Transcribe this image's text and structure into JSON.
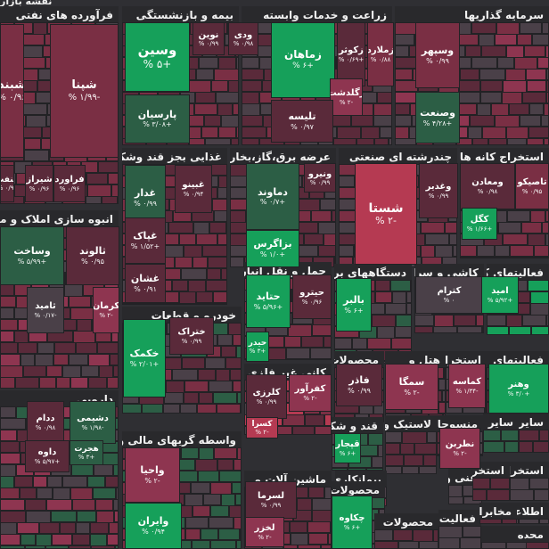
{
  "colors": {
    "red_dark": "#5a2a3a",
    "red": "#7a2f44",
    "red_mid": "#8e3550",
    "red_bright": "#b53a52",
    "grey": "#4a4048",
    "green_dark": "#2c5e45",
    "green": "#16a05a",
    "green_bright": "#19b866"
  },
  "top_clipped_label": "نقشه بازار",
  "sectors": [
    {
      "id": "s-refining",
      "title": "فرآورده های نفتی"
    },
    {
      "id": "s-insurance",
      "title": "بیمه و بازنشستگی"
    },
    {
      "id": "s-agri",
      "title": "زراعت و خدمات وابسته"
    },
    {
      "id": "s-investment",
      "title": "سرمایه گذاریها"
    },
    {
      "id": "s-food",
      "title": "غذایی بجز قند وشکر"
    },
    {
      "id": "s-wood",
      "title": "عرضه برق،گاز،بخار و آب"
    },
    {
      "id": "s-multi",
      "title": "چندرشته ای صنعتی"
    },
    {
      "id": "s-mining",
      "title": "استخراج کانه های"
    },
    {
      "id": "s-construction",
      "title": "انبوه سازی املاک و مستغ"
    },
    {
      "id": "s-transport",
      "title": "حمل و نقل انبارداری"
    },
    {
      "id": "s-elec",
      "title": "دستگاههای برقی"
    },
    {
      "id": "s-tiles",
      "title": "کاشی و سرامیک"
    },
    {
      "id": "s-auxfin",
      "title": "فعالیتهای کمکی"
    },
    {
      "id": "s-auto",
      "title": "خودرو و قطعات"
    },
    {
      "id": "s-metals",
      "title": "کانی غیر فلزی"
    },
    {
      "id": "s-products",
      "title": "محصولات"
    },
    {
      "id": "s-hotel",
      "title": "هتل و"
    },
    {
      "id": "s-extract",
      "title": "استخراج"
    },
    {
      "id": "s-act",
      "title": "فعالیتهای"
    },
    {
      "id": "s-pharma",
      "title": "دارویی"
    },
    {
      "id": "s-finance",
      "title": "واسطه گریهای مالی و پولی"
    },
    {
      "id": "s-sugar",
      "title": "قند و شکر"
    },
    {
      "id": "s-plastic",
      "title": "لاستیک و"
    },
    {
      "id": "s-textile",
      "title": "منسوجا"
    },
    {
      "id": "s-other",
      "title": "سایر"
    },
    {
      "id": "s-other2",
      "title": "سایر"
    },
    {
      "id": "s-machinery",
      "title": "ماشین آلات و"
    },
    {
      "id": "s-contract",
      "title": "پیمانکاری"
    },
    {
      "id": "s-tech",
      "title": "فنی و"
    },
    {
      "id": "s-products2",
      "title": "محصولات"
    },
    {
      "id": "s-products3",
      "title": "محصولات"
    },
    {
      "id": "s-act2",
      "title": "فعالیت"
    },
    {
      "id": "s-ext3",
      "title": "استخراج"
    },
    {
      "id": "s-ext4",
      "title": "استخراج"
    },
    {
      "id": "s-info",
      "title": "اطلاعات"
    },
    {
      "id": "s-comm",
      "title": "مخابرات"
    },
    {
      "id": "s-retail",
      "title": "خرده"
    },
    {
      "id": "s-retail2",
      "title": "محصو"
    }
  ],
  "tiles": [
    {
      "id": "t-shebandar",
      "name": "شبند",
      "pct": "۰/۹۶ %",
      "color": "red"
    },
    {
      "id": "t-shepna",
      "name": "شپنا",
      "pct": "-۱/۹۹ %",
      "color": "red"
    },
    {
      "id": "t-shiraz",
      "name": "شیراز",
      "pct": "۰/۹۶ %",
      "color": "red_dark"
    },
    {
      "id": "t-fanft",
      "name": "فنفت",
      "pct": "۰/۹۶ %",
      "color": "red_dark"
    },
    {
      "id": "t-fravard",
      "name": "فراورد",
      "pct": "۰/۹۶ %",
      "color": "red_dark"
    },
    {
      "id": "t-vasin",
      "name": "وسین",
      "pct": "+۵ %",
      "color": "green"
    },
    {
      "id": "t-novin",
      "name": "نوین",
      "pct": "۰/۹۹ %",
      "color": "red_dark"
    },
    {
      "id": "t-vadi",
      "name": "ودی",
      "pct": "۰/۹۸ %",
      "color": "red_dark"
    },
    {
      "id": "t-parsian",
      "name": "پارسیان",
      "pct": "+۳/۰۸ %",
      "color": "green_dark"
    },
    {
      "id": "t-zamahan",
      "name": "زماهان",
      "pct": "+۶ %",
      "color": "green"
    },
    {
      "id": "t-zkosar",
      "name": "زکوثر",
      "pct": "+۰/۶۹ %",
      "color": "red_dark"
    },
    {
      "id": "t-zmlard",
      "name": "زملارد",
      "pct": "۰/۸۸ %",
      "color": "red"
    },
    {
      "id": "t-zgldasht",
      "name": "زگلدشت",
      "pct": "-۲ %",
      "color": "red_mid"
    },
    {
      "id": "t-tlisa",
      "name": "تلیسه",
      "pct": "۰/۹۷ %",
      "color": "red_dark"
    },
    {
      "id": "t-vaspehr",
      "name": "وسپهر",
      "pct": "۰/۹۹ %",
      "color": "red"
    },
    {
      "id": "t-vasanat",
      "name": "وصنعت",
      "pct": "+۴/۲۸ %",
      "color": "green_dark"
    },
    {
      "id": "t-ghadar",
      "name": "غدار",
      "pct": "۰/۹۹ %",
      "color": "green_dark"
    },
    {
      "id": "t-ghinu",
      "name": "غبینو",
      "pct": "۰/۹۴ %",
      "color": "red_dark"
    },
    {
      "id": "t-ghyak",
      "name": "غپاک",
      "pct": "+۱/۵۲ %",
      "color": "red_dark"
    },
    {
      "id": "t-ghshan",
      "name": "غشان",
      "pct": "۰/۹۱ %",
      "color": "red_dark"
    },
    {
      "id": "t-vnirou",
      "name": "ونیرو",
      "pct": "۰/۹۹ %",
      "color": "red_dark"
    },
    {
      "id": "t-damavand",
      "name": "دماوند",
      "pct": "+۰/۷ %",
      "color": "green_dark"
    },
    {
      "id": "t-bzagros",
      "name": "بزاگرس",
      "pct": "+۱/۰ %",
      "color": "green"
    },
    {
      "id": "t-shasta",
      "name": "شستا",
      "pct": "-۲ %",
      "color": "red_bright"
    },
    {
      "id": "t-vaghadir",
      "name": "وغدیر",
      "pct": "۰/۹۹ %",
      "color": "red_dark"
    },
    {
      "id": "t-tasiko",
      "name": "تاصیکو",
      "pct": "۰/۹۵ %",
      "color": "red"
    },
    {
      "id": "t-maaden",
      "name": "ومعادن",
      "pct": "۰/۹۸ %",
      "color": "red_dark"
    },
    {
      "id": "t-kgol",
      "name": "کگل",
      "pct": "+۱/۶۶ %",
      "color": "green"
    },
    {
      "id": "t-vsakht",
      "name": "وساخت",
      "pct": "+۵/۹۹ %",
      "color": "green_dark"
    },
    {
      "id": "t-saland",
      "name": "ثالوند",
      "pct": "۰/۹۵ %",
      "color": "red_dark"
    },
    {
      "id": "t-samid",
      "name": "ثامید",
      "pct": "-۰/۱۷ %",
      "color": "grey"
    },
    {
      "id": "t-kerman",
      "name": "کرمان",
      "pct": "-۲ %",
      "color": "red_mid"
    },
    {
      "id": "t-hatid",
      "name": "حتاید",
      "pct": "+۵/۹۶ %",
      "color": "green"
    },
    {
      "id": "t-hitro",
      "name": "حیترو",
      "pct": "۰/۹۶ %",
      "color": "red_dark"
    },
    {
      "id": "t-heidar",
      "name": "حیدر",
      "pct": "+۳ %",
      "color": "green"
    },
    {
      "id": "t-balbar",
      "name": "بالبر",
      "pct": "+۶ %",
      "color": "green"
    },
    {
      "id": "t-ketram",
      "name": "کترام",
      "pct": "۰ %",
      "color": "grey"
    },
    {
      "id": "t-amid",
      "name": "امید",
      "pct": "+۵/۹۲ %",
      "color": "green"
    },
    {
      "id": "t-khtrak",
      "name": "ختراک",
      "pct": "۰/۹۹ %",
      "color": "red_dark"
    },
    {
      "id": "t-khekmak",
      "name": "خکمک",
      "pct": "+۲/۰۱ %",
      "color": "green"
    },
    {
      "id": "t-klrzi",
      "name": "کلرزی",
      "pct": "۰/۹۹ %",
      "color": "red_dark"
    },
    {
      "id": "t-kfravar",
      "name": "کفرآور",
      "pct": "-۲ %",
      "color": "red_mid"
    },
    {
      "id": "t-ksra",
      "name": "کسرا",
      "pct": "-۲ %",
      "color": "red_bright"
    },
    {
      "id": "t-fader",
      "name": "فاذر",
      "pct": "۰/۹۹ %",
      "color": "red_dark"
    },
    {
      "id": "t-smga",
      "name": "سمگا",
      "pct": "-۲ %",
      "color": "red_mid"
    },
    {
      "id": "t-kemase",
      "name": "کماسه",
      "pct": "-۱/۳۴ %",
      "color": "red_mid"
    },
    {
      "id": "t-vahnar",
      "name": "وهنر",
      "pct": "+۳/۰ %",
      "color": "green"
    },
    {
      "id": "t-dshimi",
      "name": "دشیمی",
      "pct": "-۱/۹۸ %",
      "color": "green_dark"
    },
    {
      "id": "t-dodam",
      "name": "ددام",
      "pct": "۰/۹۸ %",
      "color": "red_dark"
    },
    {
      "id": "t-hejrat",
      "name": "هجرت",
      "pct": "+۳ %",
      "color": "green_dark"
    },
    {
      "id": "t-dave",
      "name": "داوه",
      "pct": "+۵/۹۷ %",
      "color": "red_dark"
    },
    {
      "id": "t-vahya",
      "name": "واحیا",
      "pct": "-۲ %",
      "color": "red_mid"
    },
    {
      "id": "t-vairan",
      "name": "وایران",
      "pct": "۰/۹۴ %",
      "color": "green"
    },
    {
      "id": "t-ghapjar",
      "name": "قپجار",
      "pct": "+۶ %",
      "color": "green"
    },
    {
      "id": "t-vnarbon",
      "name": "نطربن",
      "pct": "-۲ %",
      "color": "red_mid"
    },
    {
      "id": "t-lasrma",
      "name": "لسرما",
      "pct": "۰/۹۹ %",
      "color": "red_dark"
    },
    {
      "id": "t-ltazer",
      "name": "لخزر",
      "pct": "-۲ %",
      "color": "red_mid"
    },
    {
      "id": "t-chkkaveh",
      "name": "چکاوه",
      "pct": "+۶ %",
      "color": "green"
    }
  ]
}
